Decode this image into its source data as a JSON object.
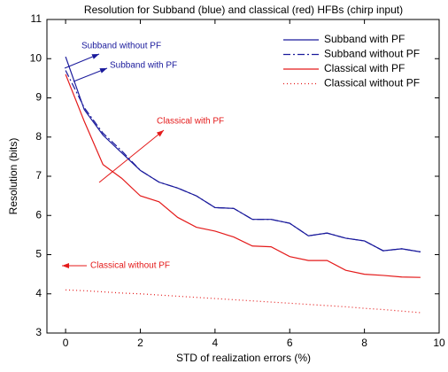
{
  "chart_data": {
    "type": "line",
    "title": "Resolution for Subband (blue) and classical (red) HFBs (chirp input)",
    "xlabel": "STD of realization errors (%)",
    "ylabel": "Resolution (bits)",
    "x": [
      0,
      0.5,
      1,
      1.5,
      2,
      2.5,
      3,
      3.5,
      4,
      4.5,
      5,
      5.5,
      6,
      6.5,
      7,
      7.5,
      8,
      8.5,
      9,
      9.5
    ],
    "series": [
      {
        "name": "Subband with PF",
        "color": "#1a1a9c",
        "dash": "solid",
        "values": [
          10.05,
          8.7,
          8.05,
          7.6,
          7.15,
          6.85,
          6.7,
          6.5,
          6.2,
          6.18,
          5.9,
          5.9,
          5.8,
          5.48,
          5.55,
          5.42,
          5.35,
          5.1,
          5.15,
          5.07
        ]
      },
      {
        "name": "Subband without PF",
        "color": "#1a1a9c",
        "dash": "dashdot",
        "values": [
          9.7,
          8.75,
          8.1,
          7.65,
          7.15,
          6.85,
          6.7,
          6.5,
          6.2,
          6.18,
          5.9,
          5.9,
          5.8,
          5.48,
          5.55,
          5.42,
          5.35,
          5.1,
          5.15,
          5.07
        ]
      },
      {
        "name": "Classical with PF",
        "color": "#e41a1a",
        "dash": "solid",
        "values": [
          9.6,
          8.4,
          7.3,
          6.95,
          6.5,
          6.35,
          5.95,
          5.7,
          5.6,
          5.45,
          5.22,
          5.2,
          4.95,
          4.85,
          4.85,
          4.6,
          4.5,
          4.47,
          4.43,
          4.42
        ]
      },
      {
        "name": "Classical without PF",
        "color": "#e41a1a",
        "dash": "dotted",
        "values": [
          4.1,
          4.08,
          4.05,
          4.02,
          4.0,
          3.97,
          3.94,
          3.91,
          3.88,
          3.85,
          3.82,
          3.79,
          3.76,
          3.73,
          3.7,
          3.67,
          3.63,
          3.6,
          3.56,
          3.52
        ]
      }
    ],
    "annotations": [
      "Subband without PF",
      "Subband with PF",
      "Classical with PF",
      "Classical without PF"
    ],
    "xlim": [
      -0.5,
      10
    ],
    "ylim": [
      3,
      11
    ],
    "xticks": [
      0,
      2,
      4,
      6,
      8,
      10
    ],
    "yticks": [
      3,
      4,
      5,
      6,
      7,
      8,
      9,
      10,
      11
    ],
    "legend": "upper right"
  }
}
